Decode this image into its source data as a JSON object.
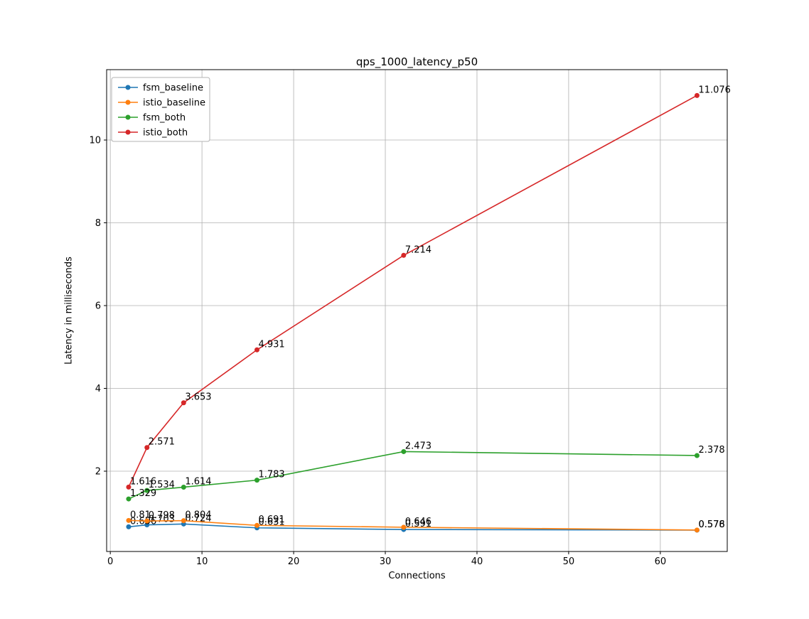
{
  "chart_data": {
    "type": "line",
    "title": "qps_1000_latency_p50",
    "xlabel": "Connections",
    "ylabel": "Latency in milliseconds",
    "x": [
      2,
      4,
      8,
      16,
      32,
      64
    ],
    "xlim": [
      -0.4,
      67.3
    ],
    "ylim": [
      0.06,
      11.7
    ],
    "xticks": [
      0,
      10,
      20,
      30,
      40,
      50,
      60
    ],
    "yticks": [
      2,
      4,
      6,
      8,
      10
    ],
    "grid": true,
    "grid_color": "#b0b0b0",
    "spine_color": "#000000",
    "legend_position": "upper left",
    "series": [
      {
        "name": "fsm_baseline",
        "color": "#1f77b4",
        "values": [
          0.656,
          0.703,
          0.724,
          0.631,
          0.591,
          0.576
        ],
        "labels": [
          "0.656",
          "0.703",
          "0.724",
          "0.631",
          "0.591",
          "0.576"
        ]
      },
      {
        "name": "istio_baseline",
        "color": "#ff7f0e",
        "values": [
          0.81,
          0.798,
          0.804,
          0.691,
          0.646,
          0.578
        ],
        "labels": [
          "0.81",
          "0.798",
          "0.804",
          "0.691",
          "0.646",
          "0.578"
        ]
      },
      {
        "name": "fsm_both",
        "color": "#2ca02c",
        "values": [
          1.329,
          1.534,
          1.614,
          1.783,
          2.473,
          2.378
        ],
        "labels": [
          "1.329",
          "1.534",
          "1.614",
          "1.783",
          "2.473",
          "2.378"
        ]
      },
      {
        "name": "istio_both",
        "color": "#d62728",
        "values": [
          1.616,
          2.571,
          3.653,
          4.931,
          7.214,
          11.076
        ],
        "labels": [
          "1.616",
          "2.571",
          "3.653",
          "4.931",
          "7.214",
          "11.076"
        ]
      }
    ]
  }
}
